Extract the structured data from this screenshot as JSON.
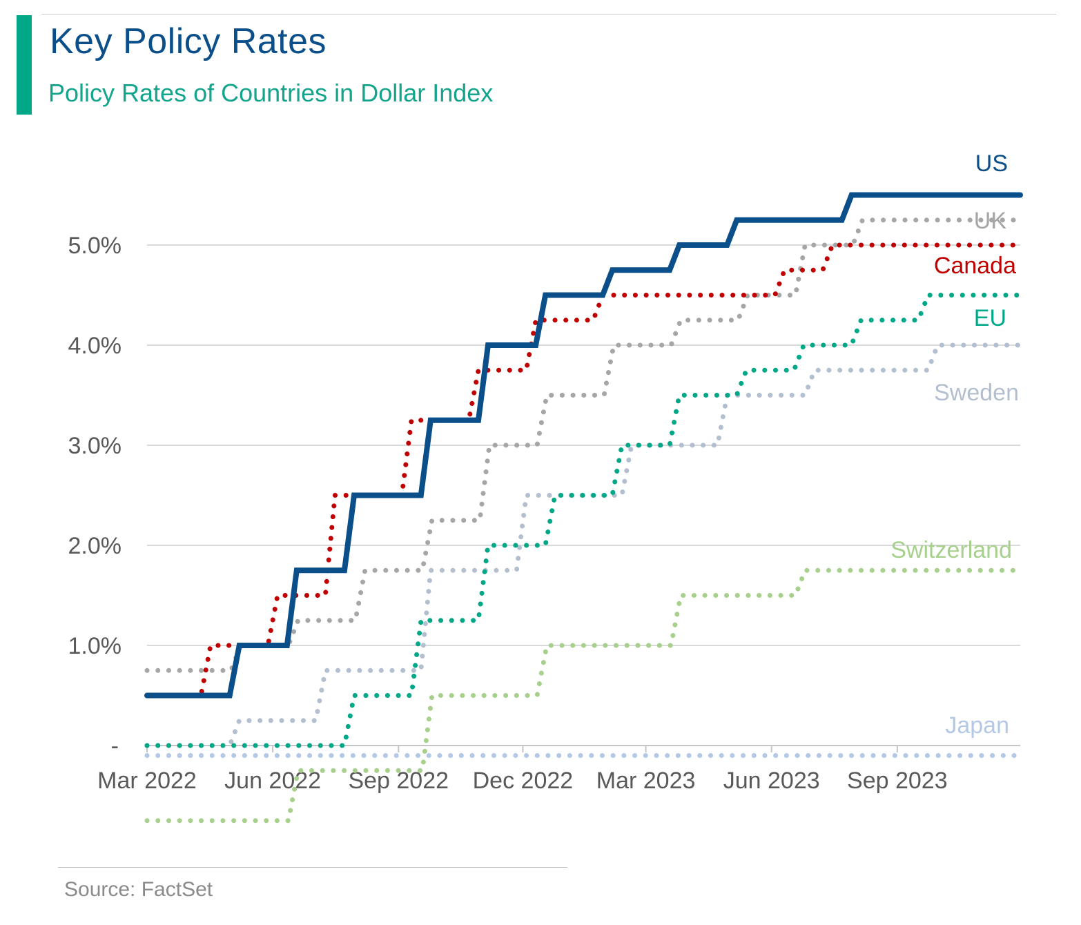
{
  "header": {
    "title": "Key Policy Rates",
    "subtitle": "Policy Rates of Countries in Dollar Index"
  },
  "footer": {
    "source": "Source: FactSet"
  },
  "chart_data": {
    "type": "line",
    "y_unit": "%",
    "ylim": [
      -0.75,
      5.75
    ],
    "y_ticks": [
      {
        "value": 0,
        "label": "-"
      },
      {
        "value": 1,
        "label": "1.0%"
      },
      {
        "value": 2,
        "label": "2.0%"
      },
      {
        "value": 3,
        "label": "3.0%"
      },
      {
        "value": 4,
        "label": "4.0%"
      },
      {
        "value": 5,
        "label": "5.0%"
      }
    ],
    "x_ticks": [
      "Mar 2022",
      "Jun 2022",
      "Sep 2022",
      "Dec 2022",
      "Mar 2023",
      "Jun 2023",
      "Sep 2023"
    ],
    "x_range": [
      "2022-03-01",
      "2023-11-30"
    ],
    "grid": true,
    "legend": "labels at line ends (right)",
    "series": [
      {
        "name": "Japan",
        "color": "#b4c8e6",
        "style": "dotted",
        "steps": [
          [
            "2022-03-01",
            -0.1
          ]
        ]
      },
      {
        "name": "Switzerland",
        "color": "#a8d08d",
        "style": "dotted",
        "steps": [
          [
            "2022-03-01",
            -0.75
          ],
          [
            "2022-06-16",
            -0.25
          ],
          [
            "2022-09-22",
            0.5
          ],
          [
            "2022-12-15",
            1.0
          ],
          [
            "2023-03-23",
            1.5
          ],
          [
            "2023-06-22",
            1.75
          ]
        ]
      },
      {
        "name": "Sweden",
        "color": "#b3bfcf",
        "style": "dotted",
        "steps": [
          [
            "2022-03-01",
            0.0
          ],
          [
            "2022-05-04",
            0.25
          ],
          [
            "2022-07-06",
            0.75
          ],
          [
            "2022-09-21",
            1.75
          ],
          [
            "2022-11-30",
            2.5
          ],
          [
            "2023-02-15",
            3.0
          ],
          [
            "2023-04-26",
            3.5
          ],
          [
            "2023-06-29",
            3.75
          ],
          [
            "2023-09-27",
            4.0
          ]
        ]
      },
      {
        "name": "EU",
        "color": "#00a888",
        "style": "dotted",
        "steps": [
          [
            "2022-03-01",
            0.0
          ],
          [
            "2022-07-27",
            0.5
          ],
          [
            "2022-09-14",
            1.25
          ],
          [
            "2022-11-02",
            2.0
          ],
          [
            "2022-12-21",
            2.5
          ],
          [
            "2023-02-08",
            3.0
          ],
          [
            "2023-03-22",
            3.5
          ],
          [
            "2023-05-10",
            3.75
          ],
          [
            "2023-06-21",
            4.0
          ],
          [
            "2023-08-02",
            4.25
          ],
          [
            "2023-09-20",
            4.5
          ]
        ]
      },
      {
        "name": "UK",
        "color": "#a6a6a6",
        "style": "dotted",
        "steps": [
          [
            "2022-03-01",
            0.75
          ],
          [
            "2022-05-05",
            1.0
          ],
          [
            "2022-06-16",
            1.25
          ],
          [
            "2022-08-04",
            1.75
          ],
          [
            "2022-09-22",
            2.25
          ],
          [
            "2022-11-03",
            3.0
          ],
          [
            "2022-12-15",
            3.5
          ],
          [
            "2023-02-02",
            4.0
          ],
          [
            "2023-03-23",
            4.25
          ],
          [
            "2023-05-11",
            4.5
          ],
          [
            "2023-06-22",
            5.0
          ],
          [
            "2023-08-03",
            5.25
          ]
        ]
      },
      {
        "name": "Canada",
        "color": "#c00000",
        "style": "dotted",
        "steps": [
          [
            "2022-03-01",
            0.5
          ],
          [
            "2022-03-02",
            0.5
          ],
          [
            "2022-04-13",
            1.0
          ],
          [
            "2022-06-01",
            1.5
          ],
          [
            "2022-07-13",
            2.5
          ],
          [
            "2022-09-07",
            3.25
          ],
          [
            "2022-10-26",
            3.75
          ],
          [
            "2022-12-07",
            4.25
          ],
          [
            "2023-01-25",
            4.5
          ],
          [
            "2023-06-07",
            4.75
          ],
          [
            "2023-07-12",
            5.0
          ]
        ]
      },
      {
        "name": "US",
        "color": "#0b4f8a",
        "style": "solid",
        "steps": [
          [
            "2022-03-01",
            0.5
          ],
          [
            "2022-03-16",
            0.5
          ],
          [
            "2022-05-04",
            1.0
          ],
          [
            "2022-06-15",
            1.75
          ],
          [
            "2022-07-27",
            2.5
          ],
          [
            "2022-09-21",
            3.25
          ],
          [
            "2022-11-02",
            4.0
          ],
          [
            "2022-12-14",
            4.5
          ],
          [
            "2023-02-01",
            4.75
          ],
          [
            "2023-03-22",
            5.0
          ],
          [
            "2023-05-03",
            5.25
          ],
          [
            "2023-07-26",
            5.5
          ]
        ]
      }
    ]
  }
}
